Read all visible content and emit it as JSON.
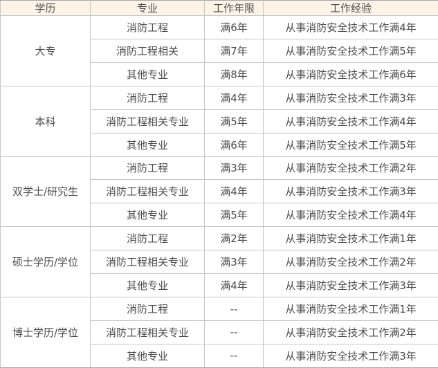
{
  "table": {
    "headers": [
      "学历",
      "专业",
      "工作年限",
      "工作经验"
    ],
    "groups": [
      {
        "education": "大专",
        "rows": [
          {
            "major": "消防工程",
            "years": "满6年",
            "experience": "从事消防安全技术工作满4年"
          },
          {
            "major": "消防工程相关",
            "years": "满7年",
            "experience": "从事消防安全技术工作满5年"
          },
          {
            "major": "其他专业",
            "years": "满8年",
            "experience": "从事消防安全技术工作满6年"
          }
        ]
      },
      {
        "education": "本科",
        "rows": [
          {
            "major": "消防工程",
            "years": "满4年",
            "experience": "从事消防安全技术工作满3年"
          },
          {
            "major": "消防工程相关专业",
            "years": "满5年",
            "experience": "从事消防安全技术工作满4年"
          },
          {
            "major": "其他专业",
            "years": "满6年",
            "experience": "从事消防安全技术工作满5年"
          }
        ]
      },
      {
        "education": "双学士/研究生",
        "rows": [
          {
            "major": "消防工程",
            "years": "满3年",
            "experience": "从事消防安全技术工作满2年"
          },
          {
            "major": "消防工程相关专业",
            "years": "满4年",
            "experience": "从事消防安全技术工作满3年"
          },
          {
            "major": "其他专业",
            "years": "满5年",
            "experience": "从事消防安全技术工作满4年"
          }
        ]
      },
      {
        "education": "硕士学历/学位",
        "rows": [
          {
            "major": "消防工程",
            "years": "满2年",
            "experience": "从事消防安全技术工作满1年"
          },
          {
            "major": "消防工程相关专业",
            "years": "满3年",
            "experience": "从事消防安全技术工作满2年"
          },
          {
            "major": "其他专业",
            "years": "满4年",
            "experience": "从事消防安全技术工作满3年"
          }
        ]
      },
      {
        "education": "博士学历/学位",
        "rows": [
          {
            "major": "消防工程",
            "years": "--",
            "experience": "从事消防安全技术工作满1年"
          },
          {
            "major": "消防工程相关专业",
            "years": "--",
            "experience": "从事消防安全技术工作满2年"
          },
          {
            "major": "其他专业",
            "years": "--",
            "experience": "从事消防安全技术工作满3年"
          }
        ]
      }
    ],
    "colors": {
      "header_bg": "#fbf4e7",
      "body_bg": "#ffffff",
      "border_inner": "#c6c6c6",
      "border_outer": "#a5a5a5",
      "text": "#4c4c4c"
    }
  }
}
